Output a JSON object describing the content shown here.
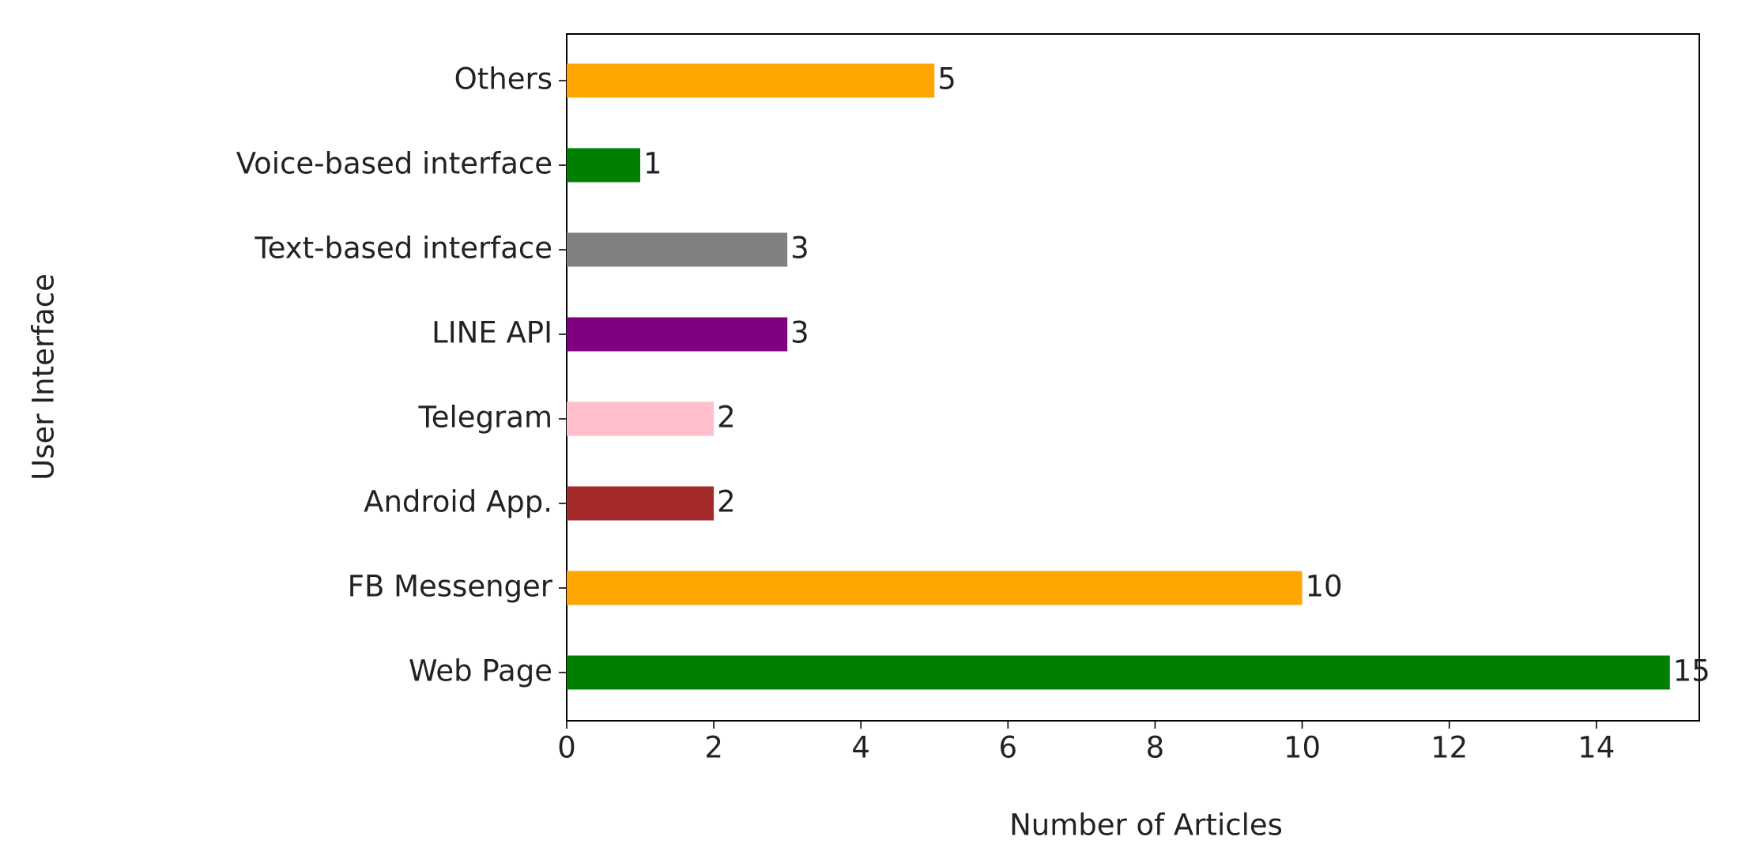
{
  "chart_data": {
    "type": "bar",
    "orientation": "horizontal",
    "xlabel": "Number of Articles",
    "ylabel": "User Interface",
    "categories": [
      "Web Page",
      "FB Messenger",
      "Android App.",
      "Telegram",
      "LINE API",
      "Text-based interface",
      "Voice-based interface",
      "Others"
    ],
    "values": [
      15,
      10,
      2,
      2,
      3,
      3,
      1,
      5
    ],
    "colors": [
      "#008000",
      "#ffa500",
      "#a52a2a",
      "#ffc0cb",
      "#800080",
      "#808080",
      "#008000",
      "#ffa500"
    ],
    "xlim": [
      0,
      15.4
    ],
    "xticks": [
      0,
      2,
      4,
      6,
      8,
      10,
      12,
      14
    ],
    "grid": false
  }
}
